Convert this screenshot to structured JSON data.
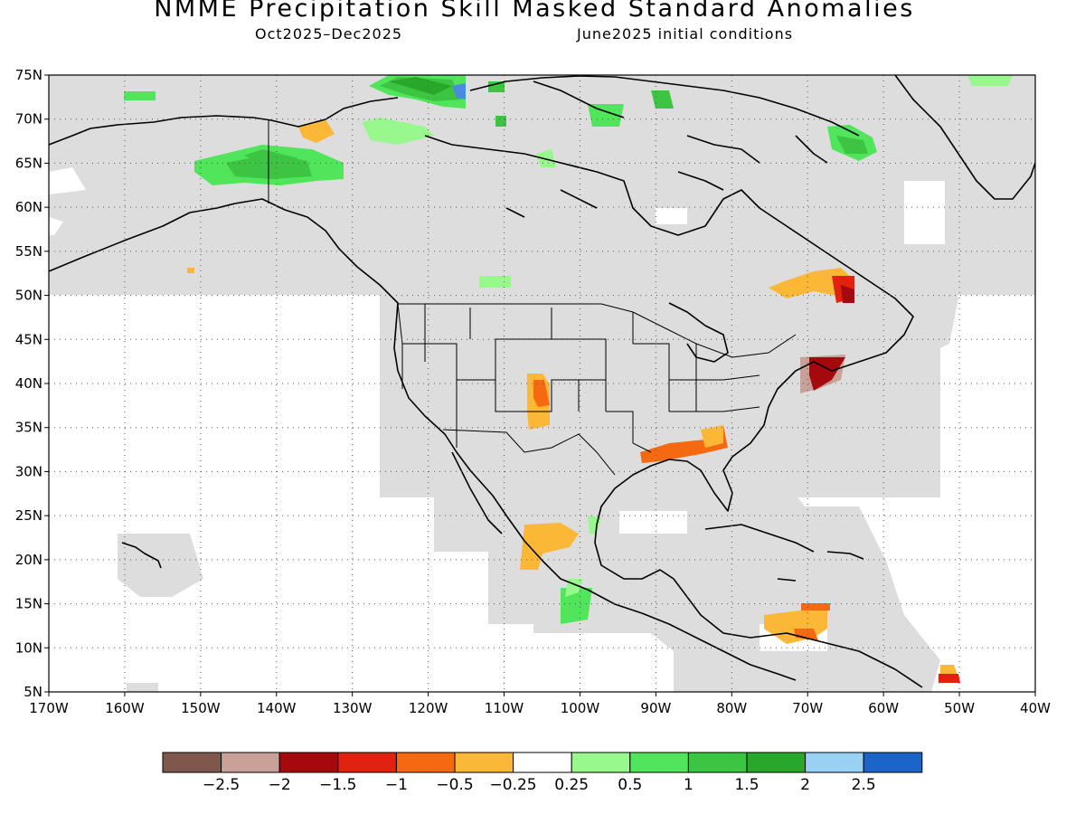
{
  "header": {
    "title": "NMME Precipitation Skill Masked Standard Anomalies",
    "period": "Oct2025–Dec2025",
    "initial_conditions": "June2025 initial conditions"
  },
  "map": {
    "projection": "equirectangular",
    "lon_range": [
      -170,
      -40
    ],
    "lat_range": [
      5,
      75
    ],
    "lat_labels": [
      "75N",
      "70N",
      "65N",
      "60N",
      "55N",
      "50N",
      "45N",
      "40N",
      "35N",
      "30N",
      "25N",
      "20N",
      "15N",
      "10N",
      "5N"
    ],
    "lon_labels": [
      "170W",
      "160W",
      "150W",
      "140W",
      "130W",
      "120W",
      "110W",
      "100W",
      "90W",
      "80W",
      "70W",
      "60W",
      "50W",
      "40W"
    ],
    "no_skill_mask_color": "#dddddd",
    "grid": "dotted"
  },
  "colorbar": {
    "colors": [
      "#7f574c",
      "#c9a198",
      "#a5090e",
      "#e0220f",
      "#f56a10",
      "#fbb736",
      "#ffffff",
      "#98f78d",
      "#50e55a",
      "#3cc442",
      "#28a72a",
      "#99d1f5",
      "#1b64c9"
    ],
    "labels": [
      "−2.5",
      "−2",
      "−1.5",
      "−1",
      "−0.5",
      "−0.25",
      "0.25",
      "0.5",
      "1",
      "1.5",
      "2",
      "2.5"
    ]
  },
  "anomalies": [
    {
      "region": "northern Alaska",
      "color": "#3cc442"
    },
    {
      "region": "Greenland",
      "color": "#3cc442"
    },
    {
      "region": "Southwest US",
      "color": "#f56a10"
    },
    {
      "region": "Gulf Coast",
      "color": "#f56a10"
    },
    {
      "region": "Northeast US coast",
      "color": "#a5090e"
    },
    {
      "region": "Gulf of St. Lawrence",
      "color": "#e0220f"
    },
    {
      "region": "southern Caribbean",
      "color": "#fbb736"
    },
    {
      "region": "western Mexico",
      "color": "#fbb736"
    }
  ]
}
